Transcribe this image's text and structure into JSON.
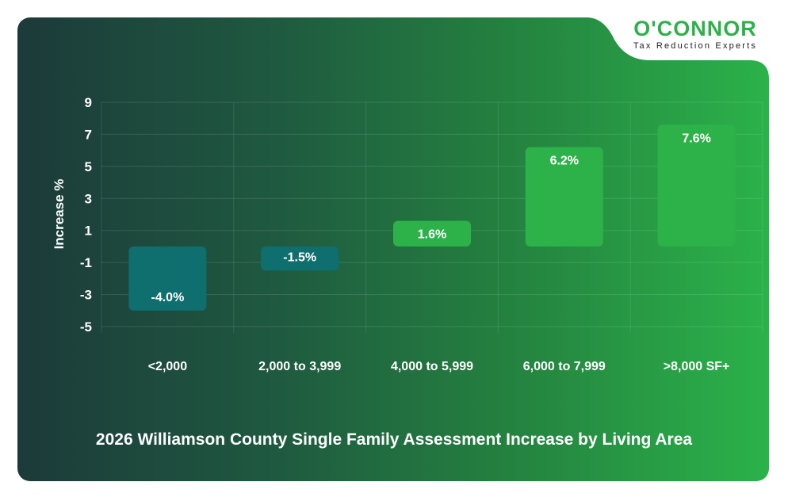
{
  "logo": {
    "name": "O'CONNOR",
    "tagline": "Tax Reduction Experts"
  },
  "chart_data": {
    "type": "bar",
    "title": "2026 Williamson County Single Family Assessment Increase by Living Area",
    "xlabel": "",
    "ylabel": "Increase %",
    "categories": [
      "<2,000",
      "2,000 to 3,999",
      "4,000 to 5,999",
      "6,000 to 7,999",
      ">8,000 SF+"
    ],
    "values": [
      -4.0,
      -1.5,
      1.6,
      6.2,
      7.6
    ],
    "data_labels": [
      "-4.0%",
      "-1.5%",
      "1.6%",
      "6.2%",
      "7.6%"
    ],
    "ylim": [
      -5,
      9
    ],
    "yticks": [
      9,
      7,
      5,
      3,
      1,
      -1,
      -3,
      -5
    ],
    "grid": true,
    "colors": {
      "negative": "#0f6e6e",
      "positive": "#2db24a"
    }
  }
}
